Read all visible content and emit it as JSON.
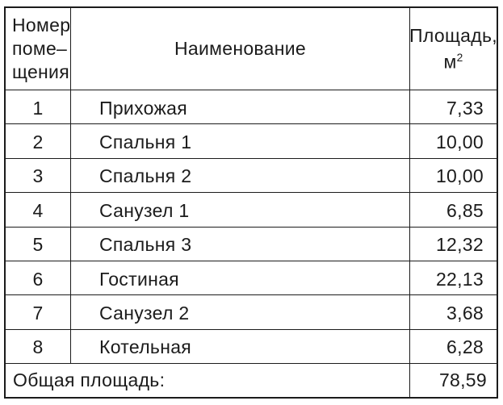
{
  "colors": {
    "background": "#ffffff",
    "border": "#1b1b1b",
    "text": "#1b1b1b"
  },
  "table": {
    "header": {
      "number_col_lines": [
        "Номер",
        "поме–",
        "щения"
      ],
      "name_col": "Наименование",
      "area_col_line1": "Площадь,",
      "area_unit": "м",
      "area_unit_sup": "2"
    },
    "rows": [
      {
        "num": "1",
        "name": "Прихожая",
        "area": "7,33"
      },
      {
        "num": "2",
        "name": "Спальня 1",
        "area": "10,00"
      },
      {
        "num": "3",
        "name": "Спальня 2",
        "area": "10,00"
      },
      {
        "num": "4",
        "name": "Санузел 1",
        "area": "6,85"
      },
      {
        "num": "5",
        "name": "Спальня 3",
        "area": "12,32"
      },
      {
        "num": "6",
        "name": "Гостиная",
        "area": "22,13"
      },
      {
        "num": "7",
        "name": "Санузел 2",
        "area": "3,68"
      },
      {
        "num": "8",
        "name": "Котельная",
        "area": "6,28"
      }
    ],
    "footer": {
      "label": "Общая площадь:",
      "total": "78,59"
    }
  }
}
